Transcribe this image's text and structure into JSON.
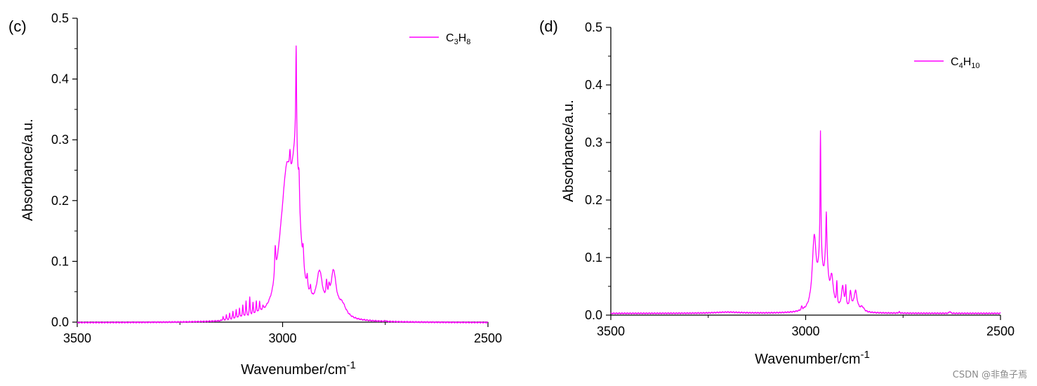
{
  "watermark": "CSDN @非鱼子焉",
  "chart_data": [
    {
      "type": "line",
      "panel_label": "(c)",
      "xlabel": "Wavenumber/cm",
      "xlabel_sup": "-1",
      "ylabel": "Absorbance/a.u.",
      "xlim": [
        3500,
        2500
      ],
      "ylim": [
        0,
        0.5
      ],
      "xticks": [
        3500,
        3000,
        2500
      ],
      "xtick_labels": [
        "3500",
        "3000",
        "2500"
      ],
      "yticks": [
        0.0,
        0.1,
        0.2,
        0.3,
        0.4,
        0.5
      ],
      "ytick_labels": [
        "0.0",
        "0.1",
        "0.2",
        "0.3",
        "0.4",
        "0.5"
      ],
      "legend_position": "top-right",
      "series": [
        {
          "name": "C3H8",
          "legend_parts": [
            [
              "C",
              ""
            ],
            [
              "3",
              "sub"
            ],
            [
              "H",
              ""
            ],
            [
              "8",
              "sub"
            ]
          ],
          "color": "#ff00ff",
          "baseline": -0.001,
          "peaks": [
            {
              "x": 3145,
              "h": 0.006,
              "w": 1.2
            },
            {
              "x": 3137,
              "h": 0.008,
              "w": 1.2
            },
            {
              "x": 3129,
              "h": 0.01,
              "w": 1.2
            },
            {
              "x": 3121,
              "h": 0.013,
              "w": 1.2
            },
            {
              "x": 3113,
              "h": 0.016,
              "w": 1.2
            },
            {
              "x": 3105,
              "h": 0.018,
              "w": 1.2
            },
            {
              "x": 3097,
              "h": 0.022,
              "w": 1.2
            },
            {
              "x": 3089,
              "h": 0.027,
              "w": 1.2
            },
            {
              "x": 3080,
              "h": 0.031,
              "w": 1.2
            },
            {
              "x": 3072,
              "h": 0.021,
              "w": 1.2
            },
            {
              "x": 3064,
              "h": 0.022,
              "w": 1.2
            },
            {
              "x": 3056,
              "h": 0.019,
              "w": 1.2
            },
            {
              "x": 3048,
              "h": 0.008,
              "w": 1.2
            },
            {
              "x": 3018,
              "h": 0.05,
              "w": 1.8
            },
            {
              "x": 3005,
              "h": 0.04,
              "w": 14
            },
            {
              "x": 2990,
              "h": 0.19,
              "w": 15
            },
            {
              "x": 2968,
              "h": 0.22,
              "w": 12
            },
            {
              "x": 2982,
              "h": 0.03,
              "w": 1.5
            },
            {
              "x": 2967,
              "h": 0.17,
              "w": 1.2
            },
            {
              "x": 2960,
              "h": 0.05,
              "w": 1.5
            },
            {
              "x": 2950,
              "h": 0.03,
              "w": 1.5
            },
            {
              "x": 2940,
              "h": 0.02,
              "w": 1.5
            },
            {
              "x": 2932,
              "h": 0.015,
              "w": 1.5
            },
            {
              "x": 2910,
              "h": 0.065,
              "w": 9
            },
            {
              "x": 2893,
              "h": 0.03,
              "w": 2.0
            },
            {
              "x": 2887,
              "h": 0.02,
              "w": 2.0
            },
            {
              "x": 2876,
              "h": 0.07,
              "w": 8
            },
            {
              "x": 2855,
              "h": 0.02,
              "w": 12
            },
            {
              "x": 2750,
              "h": 0.002,
              "w": 1.0
            }
          ]
        }
      ]
    },
    {
      "type": "line",
      "panel_label": "(d)",
      "xlabel": "Wavenumber/cm",
      "xlabel_sup": "-1",
      "ylabel": "Absorbance/a.u.",
      "xlim": [
        3500,
        2500
      ],
      "ylim": [
        0,
        0.5
      ],
      "xticks": [
        3500,
        3000,
        2500
      ],
      "xtick_labels": [
        "3500",
        "3000",
        "2500"
      ],
      "yticks": [
        0.0,
        0.1,
        0.2,
        0.3,
        0.4,
        0.5
      ],
      "ytick_labels": [
        "0.0",
        "0.1",
        "0.2",
        "0.3",
        "0.4",
        "0.5"
      ],
      "legend_position": "top-right",
      "series": [
        {
          "name": "C4H10",
          "legend_parts": [
            [
              "C",
              ""
            ],
            [
              "4",
              "sub"
            ],
            [
              "H",
              ""
            ],
            [
              "10",
              "sub"
            ]
          ],
          "color": "#ff00ff",
          "baseline": 0.003,
          "peaks": [
            {
              "x": 3010,
              "h": 0.006,
              "w": 1.5
            },
            {
              "x": 2978,
              "h": 0.12,
              "w": 6
            },
            {
              "x": 2962,
              "h": 0.08,
              "w": 7
            },
            {
              "x": 2962,
              "h": 0.21,
              "w": 1.2
            },
            {
              "x": 2947,
              "h": 0.09,
              "w": 5
            },
            {
              "x": 2947,
              "h": 0.06,
              "w": 1.2
            },
            {
              "x": 2933,
              "h": 0.05,
              "w": 5
            },
            {
              "x": 2920,
              "h": 0.04,
              "w": 1.5
            },
            {
              "x": 2905,
              "h": 0.04,
              "w": 4
            },
            {
              "x": 2897,
              "h": 0.035,
              "w": 1.5
            },
            {
              "x": 2885,
              "h": 0.03,
              "w": 3
            },
            {
              "x": 2872,
              "h": 0.035,
              "w": 5
            },
            {
              "x": 2855,
              "h": 0.008,
              "w": 6
            },
            {
              "x": 2760,
              "h": 0.002,
              "w": 2
            },
            {
              "x": 2630,
              "h": 0.004,
              "w": 1.5
            },
            {
              "x": 3200,
              "h": 0.002,
              "w": 40
            }
          ]
        }
      ]
    }
  ]
}
